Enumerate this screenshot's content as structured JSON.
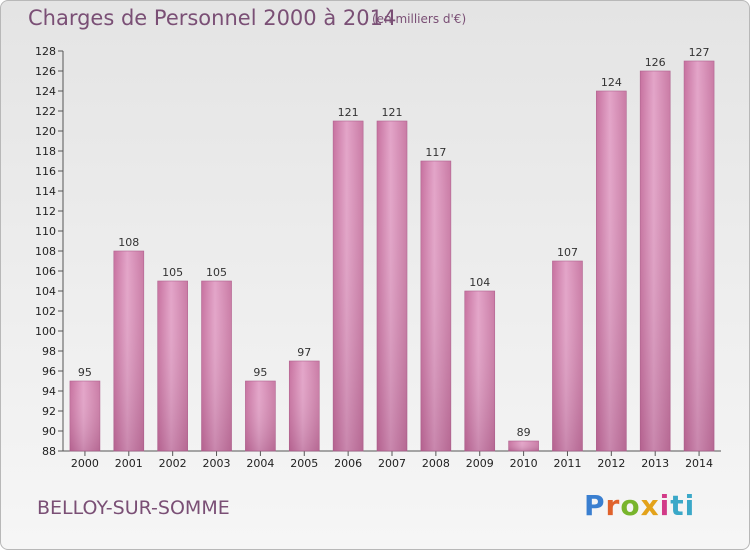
{
  "chart_data": {
    "type": "bar",
    "title": "Charges de Personnel 2000 à 2014",
    "subtitle": "(en milliers d'€)",
    "categories": [
      "2000",
      "2001",
      "2002",
      "2003",
      "2004",
      "2005",
      "2006",
      "2007",
      "2008",
      "2009",
      "2010",
      "2011",
      "2012",
      "2013",
      "2014"
    ],
    "values": [
      95,
      108,
      105,
      105,
      95,
      97,
      121,
      121,
      117,
      104,
      89,
      107,
      124,
      126,
      127
    ],
    "ylim": [
      88,
      128
    ],
    "ytick_step": 2,
    "grid": false,
    "bar_color": "#d98fba",
    "xlabel": "",
    "ylabel": ""
  },
  "commune": "BELLOY-SUR-SOMME",
  "logo": {
    "letters": [
      "P",
      "r",
      "o",
      "x",
      "i",
      "ti"
    ]
  }
}
